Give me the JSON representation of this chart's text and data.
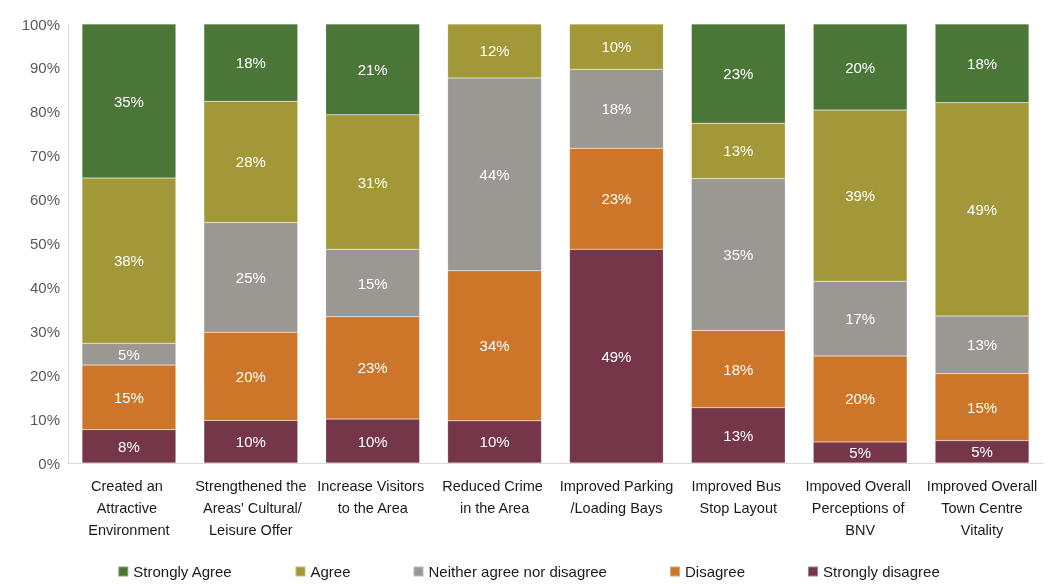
{
  "chart_data": {
    "type": "bar",
    "stacked": true,
    "legend": "bottom",
    "categories": [
      "Created an Attractive Environment",
      "Strengthened the Areas' Cultural/Leisure Offer",
      "Increase Visitors to the Area",
      "Reduced Crime in the Area",
      "Improved Parking/Loading Bays",
      "Improved Bus Stop Layout",
      "Impoved Overall Perceptions of BNV",
      "Improved Overall Town Centre Vitality"
    ],
    "series": [
      {
        "name": "Strongly disagree",
        "color": "#76364a",
        "values": [
          7.6,
          9.7,
          10.0,
          9.6,
          48.7,
          12.6,
          4.8,
          5.1
        ],
        "value_labels": [
          "8%",
          "10%",
          "10%",
          "10%",
          "49%",
          "13%",
          "5%",
          "5%"
        ]
      },
      {
        "name": "Disagree",
        "color": "#cd7629",
        "values": [
          14.7,
          20.1,
          23.3,
          34.2,
          23.0,
          17.6,
          19.6,
          15.3
        ],
        "value_labels": [
          "15%",
          "20%",
          "23%",
          "34%",
          "23%",
          "18%",
          "20%",
          "15%"
        ]
      },
      {
        "name": "Neither agree nor disagree",
        "color": "#9b9793",
        "values": [
          5.0,
          25.0,
          15.4,
          43.9,
          18.0,
          34.6,
          17.0,
          13.1
        ],
        "value_labels": [
          "5%",
          "25%",
          "15%",
          "44%",
          "18%",
          "35%",
          "17%",
          "13%"
        ]
      },
      {
        "name": "Agree",
        "color": "#a29837",
        "values": [
          37.6,
          27.6,
          30.6,
          12.3,
          10.3,
          12.6,
          39.0,
          48.6
        ],
        "value_labels": [
          "38%",
          "28%",
          "31%",
          "12%",
          "10%",
          "13%",
          "39%",
          "49%"
        ]
      },
      {
        "name": "Strongly Agree",
        "color": "#4a7638",
        "values": [
          35.1,
          17.6,
          20.7,
          null,
          null,
          22.6,
          19.6,
          17.9
        ],
        "value_labels": [
          "35%",
          "18%",
          "21%",
          null,
          null,
          "23%",
          "20%",
          "18%"
        ]
      }
    ],
    "ylim": [
      0,
      100
    ],
    "yticks": [
      {
        "value": 0,
        "label": "0%"
      },
      {
        "value": 10,
        "label": "10%"
      },
      {
        "value": 20,
        "label": "20%"
      },
      {
        "value": 30,
        "label": "30%"
      },
      {
        "value": 40,
        "label": "40%"
      },
      {
        "value": 50,
        "label": "50%"
      },
      {
        "value": 60,
        "label": "60%"
      },
      {
        "value": 70,
        "label": "70%"
      },
      {
        "value": 80,
        "label": "80%"
      },
      {
        "value": 90,
        "label": "90%"
      },
      {
        "value": 100,
        "label": "100%"
      }
    ]
  }
}
